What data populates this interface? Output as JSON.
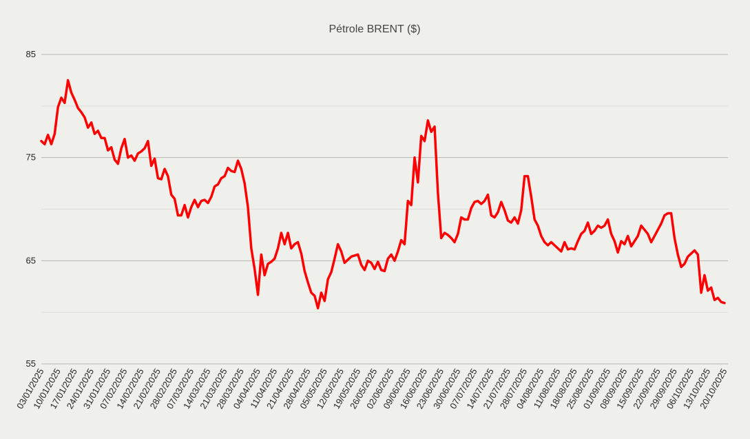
{
  "chart_data": {
    "type": "line",
    "title": "Pétrole BRENT ($)",
    "color": "#ff0000",
    "ylim": [
      55,
      85
    ],
    "yticks": [
      55,
      65,
      75,
      85
    ],
    "minor_yticks": [
      60,
      70,
      80
    ],
    "grid": true,
    "categories": [
      "03/01/2025",
      null,
      null,
      null,
      null,
      "10/01/2025",
      null,
      null,
      null,
      null,
      "17/01/2025",
      null,
      null,
      null,
      null,
      "24/01/2025",
      null,
      null,
      null,
      null,
      "31/01/2025",
      null,
      null,
      null,
      null,
      "07/02/2025",
      null,
      null,
      null,
      null,
      "14/02/2025",
      null,
      null,
      null,
      null,
      "21/02/2025",
      null,
      null,
      null,
      null,
      "28/02/2025",
      null,
      null,
      null,
      null,
      "07/03/2025",
      null,
      null,
      null,
      null,
      "14/03/2025",
      null,
      null,
      null,
      null,
      "21/03/2025",
      null,
      null,
      null,
      null,
      "28/03/2025",
      null,
      null,
      null,
      null,
      "04/04/2025",
      null,
      null,
      null,
      null,
      "11/04/2025",
      null,
      null,
      null,
      null,
      "21/04/2025",
      null,
      null,
      null,
      null,
      "28/04/2025",
      null,
      null,
      null,
      null,
      "05/05/2025",
      null,
      null,
      null,
      null,
      "12/05/2025",
      null,
      null,
      null,
      null,
      "19/05/2025",
      null,
      null,
      null,
      null,
      "26/05/2025",
      null,
      null,
      null,
      null,
      "02/06/2025",
      null,
      null,
      null,
      null,
      "09/06/2025",
      null,
      null,
      null,
      null,
      "16/06/2025",
      null,
      null,
      null,
      null,
      "23/06/2025",
      null,
      null,
      null,
      null,
      "30/06/2025",
      null,
      null,
      null,
      null,
      "07/07/2025",
      null,
      null,
      null,
      null,
      "14/07/2025",
      null,
      null,
      null,
      null,
      "21/07/2025",
      null,
      null,
      null,
      null,
      "28/07/2025",
      null,
      null,
      null,
      null,
      "04/08/2025",
      null,
      null,
      null,
      null,
      "11/08/2025",
      null,
      null,
      null,
      null,
      "18/08/2025",
      null,
      null,
      null,
      null,
      "25/08/2025",
      null,
      null,
      null,
      null,
      "01/09/2025",
      null,
      null,
      null,
      null,
      "08/09/2025",
      null,
      null,
      null,
      null,
      "15/09/2025",
      null,
      null,
      null,
      null,
      "22/09/2025",
      null,
      null,
      null,
      null,
      "29/09/2025",
      null,
      null,
      null,
      null,
      "06/10/2025",
      null,
      null,
      null,
      null,
      "13/10/2025",
      null,
      null,
      null,
      null,
      "20/10/2025"
    ],
    "values": [
      76.6,
      76.3,
      77.2,
      76.3,
      77.3,
      79.9,
      80.8,
      80.3,
      82.5,
      81.3,
      80.6,
      79.8,
      79.4,
      78.9,
      77.9,
      78.4,
      77.3,
      77.6,
      76.9,
      76.9,
      75.7,
      76.0,
      74.8,
      74.4,
      75.9,
      76.8,
      75.0,
      75.2,
      74.7,
      75.4,
      75.6,
      75.9,
      76.6,
      74.2,
      74.9,
      73.0,
      72.9,
      73.9,
      73.2,
      71.4,
      71.0,
      69.4,
      69.4,
      70.4,
      69.2,
      70.2,
      70.9,
      70.2,
      70.8,
      70.9,
      70.6,
      71.2,
      72.2,
      72.4,
      73.0,
      73.2,
      74.0,
      73.7,
      73.6,
      74.7,
      73.9,
      72.5,
      70.2,
      66.2,
      64.2,
      61.7,
      65.6,
      63.6,
      64.7,
      64.9,
      65.2,
      66.2,
      67.7,
      66.6,
      67.7,
      66.2,
      66.6,
      66.8,
      65.7,
      64.0,
      62.9,
      61.9,
      61.6,
      60.4,
      61.9,
      61.1,
      63.2,
      63.9,
      65.2,
      66.6,
      65.9,
      64.8,
      65.1,
      65.4,
      65.5,
      65.6,
      64.6,
      64.1,
      65.0,
      64.8,
      64.2,
      64.9,
      64.1,
      64.0,
      65.2,
      65.6,
      65.0,
      65.9,
      67.0,
      66.6,
      70.8,
      70.4,
      75.0,
      72.6,
      77.1,
      76.6,
      78.6,
      77.5,
      78.0,
      71.6,
      67.2,
      67.7,
      67.5,
      67.2,
      66.8,
      67.6,
      69.2,
      69.0,
      69.0,
      70.1,
      70.7,
      70.8,
      70.5,
      70.8,
      71.4,
      69.4,
      69.2,
      69.7,
      70.7,
      69.9,
      68.9,
      68.7,
      69.2,
      68.6,
      69.9,
      73.2,
      73.2,
      71.2,
      69.0,
      68.4,
      67.4,
      66.8,
      66.5,
      66.8,
      66.5,
      66.2,
      65.9,
      66.8,
      66.1,
      66.2,
      66.1,
      66.9,
      67.6,
      67.9,
      68.7,
      67.6,
      67.9,
      68.4,
      68.2,
      68.4,
      69.0,
      67.6,
      66.9,
      65.8,
      66.9,
      66.6,
      67.4,
      66.4,
      66.9,
      67.4,
      68.4,
      68.0,
      67.6,
      66.8,
      67.4,
      68.0,
      68.6,
      69.4,
      69.6,
      69.6,
      67.2,
      65.6,
      64.4,
      64.7,
      65.4,
      65.7,
      66.0,
      65.6,
      61.9,
      63.6,
      62.1,
      62.4,
      61.2,
      61.4,
      61.0,
      60.9
    ]
  }
}
